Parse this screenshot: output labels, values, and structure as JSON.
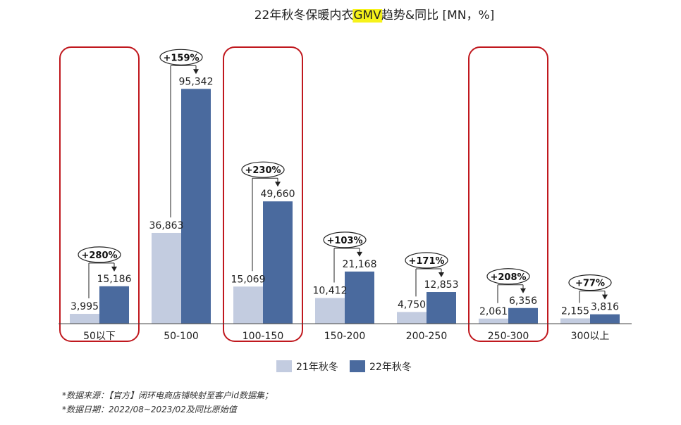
{
  "chart_data": {
    "type": "bar",
    "title": {
      "prefix": "22年秋冬保暖内衣",
      "highlight": "GMV",
      "suffix": "趋势&同比 [MN，%]"
    },
    "categories": [
      "50以下",
      "50-100",
      "100-150",
      "150-200",
      "200-250",
      "250-300",
      "300以上"
    ],
    "series": [
      {
        "name": "21年秋冬",
        "values": [
          3995,
          36863,
          15069,
          10412,
          4750,
          2061,
          2155
        ],
        "labels": [
          "3,995",
          "36,863",
          "15,069",
          "10,412",
          "4,750",
          "2,061",
          "2,155"
        ]
      },
      {
        "name": "22年秋冬",
        "values": [
          15186,
          95342,
          49660,
          21168,
          12853,
          6356,
          3816
        ],
        "labels": [
          "15,186",
          "95,342",
          "49,660",
          "21,168",
          "12,853",
          "6,356",
          "3,816"
        ]
      }
    ],
    "growth": [
      "+280%",
      "+159%",
      "+230%",
      "+103%",
      "+171%",
      "+208%",
      "+77%"
    ],
    "highlighted_categories": [
      "50以下",
      "100-150",
      "250-300"
    ],
    "colors": {
      "series1": "#c3cce0",
      "series2": "#4a6a9e",
      "highlight_box": "#c0181e",
      "title_highlight": "#f6f21a"
    },
    "legend_position": "bottom",
    "grid": false
  },
  "notes": {
    "source": "*数据来源：【官方】闭环电商店铺映射至客户id数据集；",
    "date": "*数据日期：2022/08~2023/02及同比原始值"
  }
}
